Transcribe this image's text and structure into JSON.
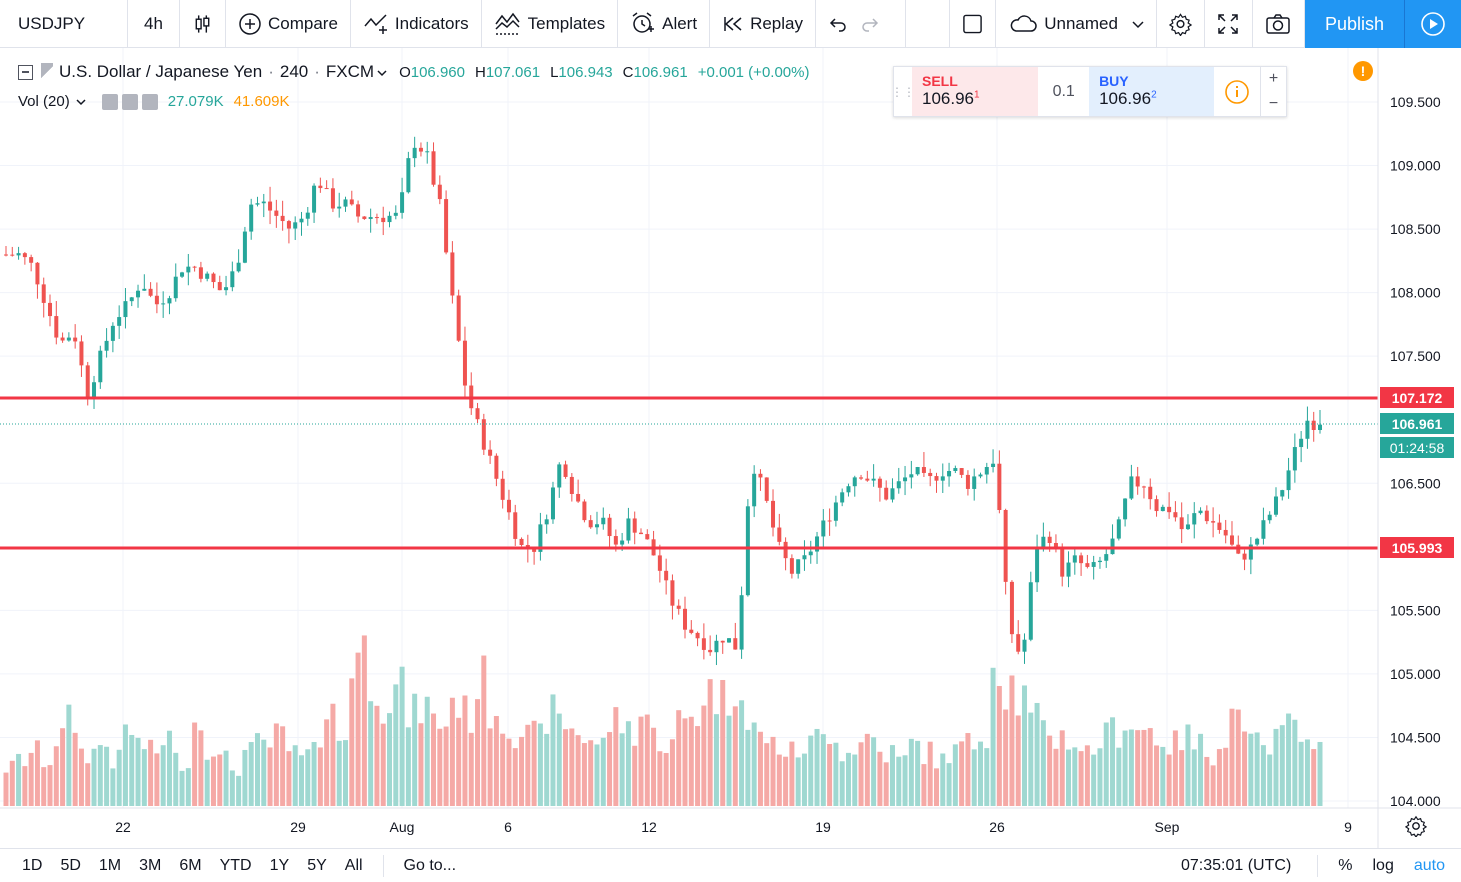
{
  "toolbar": {
    "symbol": "USDJPY",
    "interval": "4h",
    "compare": "Compare",
    "indicators": "Indicators",
    "templates": "Templates",
    "alert": "Alert",
    "replay": "Replay",
    "layout_name": "Unnamed",
    "publish": "Publish"
  },
  "legend": {
    "name": "U.S. Dollar / Japanese Yen",
    "interval": "240",
    "exchange": "FXCM",
    "open_label": "O",
    "open": "106.960",
    "high_label": "H",
    "high": "107.061",
    "low_label": "L",
    "low": "106.943",
    "close_label": "C",
    "close": "106.961",
    "change": "+0.001 (+0.00%)",
    "vol_label": "Vol (20)",
    "vol_value": "27.079K",
    "vol_ma": "41.609K"
  },
  "trade": {
    "sell_label": "SELL",
    "sell_price": "106.96",
    "sell_sup": "1",
    "qty": "0.1",
    "buy_label": "BUY",
    "buy_price": "106.96",
    "buy_sup": "2"
  },
  "price_axis": {
    "ticks": [
      "109.500",
      "109.000",
      "108.500",
      "108.000",
      "107.500",
      "106.500",
      "105.500",
      "105.000",
      "104.500",
      "104.000"
    ],
    "resistance_label": "107.172",
    "current_label": "106.961",
    "countdown": "01:24:58",
    "support_label": "105.993"
  },
  "time_axis": {
    "ticks": [
      "22",
      "29",
      "Aug",
      "6",
      "12",
      "19",
      "26",
      "Sep",
      "9"
    ]
  },
  "bottom": {
    "ranges": [
      "1D",
      "5D",
      "1M",
      "3M",
      "6M",
      "YTD",
      "1Y",
      "5Y",
      "All"
    ],
    "goto": "Go to...",
    "time": "07:35:01 (UTC)",
    "percent": "%",
    "log": "log",
    "auto": "auto"
  },
  "colors": {
    "up": "#26a69a",
    "down": "#ef5350",
    "line": "#f23645",
    "accent": "#2196f3"
  },
  "chart_data": {
    "type": "candlestick",
    "symbol": "USDJPY",
    "interval": "4h",
    "ylim": [
      104.0,
      109.9
    ],
    "horizontal_lines": [
      107.172,
      105.993
    ],
    "last_price": 106.961,
    "x_ticks": [
      "22",
      "29",
      "Aug",
      "6",
      "12",
      "19",
      "26",
      "Sep",
      "9"
    ],
    "close_path": [
      108.3,
      108.3,
      108.2,
      107.9,
      107.6,
      107.7,
      107.2,
      107.5,
      107.8,
      107.9,
      108.1,
      107.9,
      108.0,
      108.2,
      108.2,
      108.1,
      108.0,
      108.2,
      108.7,
      108.7,
      108.6,
      108.5,
      108.6,
      108.9,
      108.7,
      108.7,
      108.6,
      108.6,
      108.6,
      108.6,
      109.2,
      109.1,
      108.7,
      107.9,
      107.2,
      106.9,
      106.6,
      106.3,
      106.0,
      106.0,
      106.3,
      106.7,
      106.4,
      106.2,
      106.2,
      106.0,
      106.2,
      106.1,
      105.9,
      105.6,
      105.4,
      105.3,
      105.2,
      105.3,
      105.2,
      106.7,
      106.4,
      106.0,
      105.8,
      105.9,
      106.1,
      106.3,
      106.5,
      106.6,
      106.5,
      106.4,
      106.5,
      106.6,
      106.5,
      106.6,
      106.6,
      106.5,
      106.6,
      106.7,
      105.4,
      105.1,
      106.0,
      106.1,
      105.8,
      105.9,
      105.8,
      105.9,
      106.1,
      106.5,
      106.5,
      106.3,
      106.3,
      106.1,
      106.3,
      106.2,
      106.1,
      105.9,
      106.0,
      106.2,
      106.4,
      106.7,
      107.0,
      106.96
    ],
    "volume_relative": [
      0.25,
      0.3,
      0.35,
      0.3,
      0.45,
      0.55,
      0.35,
      0.4,
      0.3,
      0.5,
      0.4,
      0.35,
      0.45,
      0.3,
      0.55,
      0.4,
      0.3,
      0.25,
      0.35,
      0.4,
      0.45,
      0.35,
      0.3,
      0.5,
      0.6,
      0.45,
      1.0,
      0.85,
      0.7,
      0.75,
      0.6,
      0.65,
      0.55,
      0.7,
      0.6,
      0.8,
      0.65,
      0.55,
      0.5,
      0.45,
      0.6,
      0.55,
      0.5,
      0.45,
      0.4,
      0.55,
      0.5,
      0.6,
      0.45,
      0.4,
      0.55,
      0.6,
      0.75,
      0.7,
      0.85,
      0.5,
      0.45,
      0.4,
      0.35,
      0.4,
      0.45,
      0.5,
      0.35,
      0.4,
      0.45,
      0.35,
      0.3,
      0.4,
      0.35,
      0.3,
      0.35,
      0.4,
      0.5,
      0.95,
      0.8,
      0.7,
      0.55,
      0.5,
      0.45,
      0.4,
      0.35,
      0.45,
      0.5,
      0.55,
      0.5,
      0.45,
      0.4,
      0.45,
      0.4,
      0.35,
      0.45,
      0.6,
      0.4,
      0.35,
      0.45,
      0.5,
      0.55,
      0.35
    ]
  }
}
